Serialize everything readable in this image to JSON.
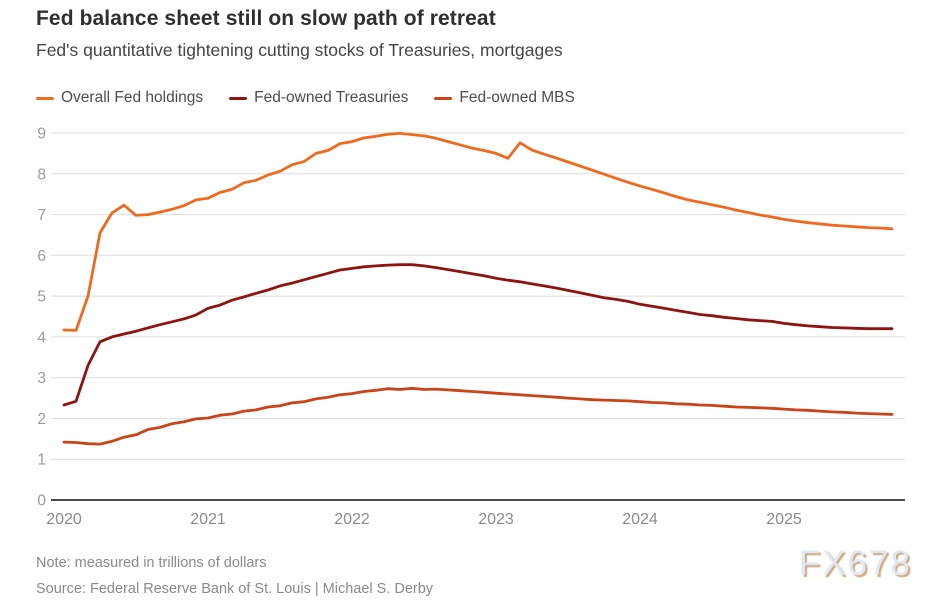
{
  "header": {
    "title": "Fed balance sheet still on slow path of retreat",
    "subtitle": "Fed's quantitative tightening cutting stocks of Treasuries, mortgages"
  },
  "footer": {
    "note": "Note: measured in trillions of dollars",
    "source": "Source: Federal Reserve Bank of St. Louis | Michael S. Derby",
    "watermark": "FX678"
  },
  "colors": {
    "overall": "#ef6a1e",
    "treasuries": "#8c1512",
    "mbs": "#c94418",
    "grid": "#dedede",
    "axis": "#4d4d4d",
    "tick_label": "#8c8c8c",
    "watermark_text": "#dfe9f5",
    "watermark_shadow": "#d2a87f"
  },
  "chart_data": {
    "type": "line",
    "title": "Fed balance sheet still on slow path of retreat",
    "subtitle": "Fed's quantitative tightening cutting stocks of Treasuries, mortgages",
    "unit": "trillions of dollars",
    "x_start": "2020-01",
    "x_end": "2025-10",
    "x_interval": "monthly",
    "xlim": [
      2019.91,
      2025.84
    ],
    "ylim": [
      0,
      9
    ],
    "x_ticks": [
      2020,
      2021,
      2022,
      2023,
      2024,
      2025
    ],
    "y_ticks": [
      0,
      1,
      2,
      3,
      4,
      5,
      6,
      7,
      8,
      9
    ],
    "grid": "horizontal",
    "legend_position": "top-left",
    "series": [
      {
        "name": "Overall Fed holdings",
        "color": "#ef6a1e",
        "values": [
          4.17,
          4.16,
          5.0,
          6.55,
          7.04,
          7.23,
          6.98,
          7.0,
          7.06,
          7.13,
          7.22,
          7.36,
          7.4,
          7.54,
          7.62,
          7.78,
          7.84,
          7.97,
          8.06,
          8.22,
          8.3,
          8.5,
          8.57,
          8.74,
          8.79,
          8.88,
          8.92,
          8.97,
          8.99,
          8.96,
          8.93,
          8.87,
          8.79,
          8.71,
          8.63,
          8.57,
          8.5,
          8.38,
          8.76,
          8.58,
          8.48,
          8.39,
          8.29,
          8.19,
          8.09,
          7.99,
          7.89,
          7.79,
          7.7,
          7.62,
          7.53,
          7.44,
          7.36,
          7.3,
          7.24,
          7.18,
          7.11,
          7.05,
          6.99,
          6.94,
          6.88,
          6.84,
          6.8,
          6.77,
          6.74,
          6.72,
          6.7,
          6.68,
          6.67,
          6.65
        ]
      },
      {
        "name": "Fed-owned Treasuries",
        "color": "#8c1512",
        "values": [
          2.33,
          2.42,
          3.3,
          3.88,
          4.0,
          4.07,
          4.14,
          4.22,
          4.3,
          4.37,
          4.44,
          4.54,
          4.7,
          4.78,
          4.9,
          4.98,
          5.07,
          5.15,
          5.25,
          5.32,
          5.4,
          5.48,
          5.56,
          5.64,
          5.68,
          5.72,
          5.74,
          5.76,
          5.77,
          5.77,
          5.74,
          5.7,
          5.65,
          5.6,
          5.55,
          5.5,
          5.44,
          5.39,
          5.35,
          5.3,
          5.25,
          5.2,
          5.14,
          5.08,
          5.02,
          4.96,
          4.92,
          4.87,
          4.8,
          4.75,
          4.7,
          4.65,
          4.6,
          4.55,
          4.52,
          4.48,
          4.45,
          4.42,
          4.4,
          4.38,
          4.33,
          4.3,
          4.27,
          4.25,
          4.23,
          4.22,
          4.21,
          4.2,
          4.2,
          4.2
        ]
      },
      {
        "name": "Fed-owned MBS",
        "color": "#c94418",
        "values": [
          1.42,
          1.41,
          1.38,
          1.37,
          1.44,
          1.54,
          1.6,
          1.73,
          1.78,
          1.87,
          1.92,
          1.99,
          2.01,
          2.08,
          2.11,
          2.18,
          2.21,
          2.28,
          2.31,
          2.38,
          2.41,
          2.48,
          2.52,
          2.58,
          2.61,
          2.66,
          2.69,
          2.73,
          2.71,
          2.74,
          2.71,
          2.72,
          2.7,
          2.68,
          2.66,
          2.64,
          2.62,
          2.6,
          2.58,
          2.56,
          2.54,
          2.52,
          2.5,
          2.48,
          2.46,
          2.45,
          2.44,
          2.43,
          2.41,
          2.39,
          2.38,
          2.36,
          2.35,
          2.33,
          2.32,
          2.3,
          2.28,
          2.27,
          2.26,
          2.25,
          2.23,
          2.21,
          2.2,
          2.18,
          2.16,
          2.15,
          2.13,
          2.12,
          2.11,
          2.1
        ]
      }
    ]
  }
}
